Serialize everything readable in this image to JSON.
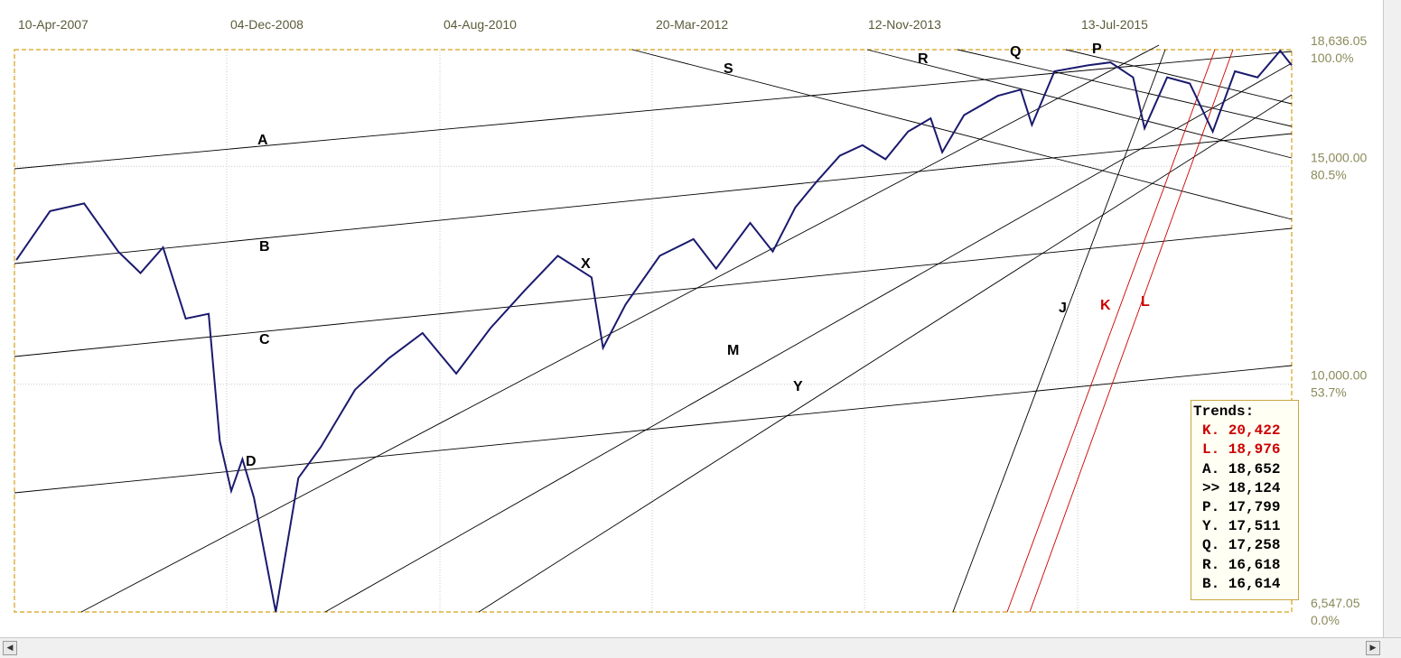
{
  "chart_data": {
    "type": "line",
    "title": "",
    "xlabel": "",
    "ylabel": "",
    "scale": "log",
    "ylim": [
      6547.05,
      18636.05
    ],
    "x_tick_labels": [
      "10-Apr-2007",
      "04-Dec-2008",
      "04-Aug-2010",
      "20-Mar-2012",
      "12-Nov-2013",
      "13-Jul-2015"
    ],
    "y_ticks": [
      {
        "value": "18,636.05",
        "percent": "100.0%"
      },
      {
        "value": "15,000.00",
        "percent": "80.5%"
      },
      {
        "value": "10,000.00",
        "percent": "53.7%"
      },
      {
        "value": "6,547.05",
        "percent": "0.0%"
      }
    ],
    "series": [
      {
        "color": "#1a1a6e",
        "x": [
          "2007-04",
          "2007-07",
          "2007-10",
          "2008-01",
          "2008-03",
          "2008-05",
          "2008-07",
          "2008-09",
          "2008-10",
          "2008-11",
          "2008-12",
          "2009-01",
          "2009-03",
          "2009-05",
          "2009-07",
          "2009-10",
          "2010-01",
          "2010-04",
          "2010-07",
          "2010-10",
          "2011-01",
          "2011-04",
          "2011-07",
          "2011-08",
          "2011-10",
          "2012-01",
          "2012-04",
          "2012-06",
          "2012-09",
          "2012-11",
          "2013-01",
          "2013-03",
          "2013-05",
          "2013-07",
          "2013-09",
          "2013-11",
          "2014-01",
          "2014-02",
          "2014-04",
          "2014-07",
          "2014-09",
          "2014-10",
          "2014-12",
          "2015-03",
          "2015-05",
          "2015-07",
          "2015-08",
          "2015-10",
          "2015-12",
          "2016-02",
          "2016-04",
          "2016-06",
          "2016-08",
          "2016-09"
        ],
        "values": [
          12600,
          13800,
          14000,
          12800,
          12300,
          12900,
          11300,
          11400,
          9000,
          8200,
          8700,
          8100,
          6547,
          8400,
          8900,
          9900,
          10500,
          11000,
          10200,
          11100,
          11900,
          12700,
          12200,
          10700,
          11600,
          12700,
          13100,
          12400,
          13500,
          12800,
          13900,
          14600,
          15300,
          15600,
          15200,
          16000,
          16400,
          15400,
          16500,
          17100,
          17300,
          16200,
          17900,
          18100,
          18200,
          17700,
          16100,
          17700,
          17500,
          16000,
          17900,
          17700,
          18600,
          18100
        ]
      }
    ],
    "trendlines": [
      {
        "label": "A",
        "color": "#000000"
      },
      {
        "label": "B",
        "color": "#000000"
      },
      {
        "label": "C",
        "color": "#000000"
      },
      {
        "label": "D",
        "color": "#000000"
      },
      {
        "label": "X",
        "color": "#000000"
      },
      {
        "label": "M",
        "color": "#000000"
      },
      {
        "label": "Y",
        "color": "#000000"
      },
      {
        "label": "S",
        "color": "#000000"
      },
      {
        "label": "R",
        "color": "#000000"
      },
      {
        "label": "Q",
        "color": "#000000"
      },
      {
        "label": "P",
        "color": "#000000"
      },
      {
        "label": "J",
        "color": "#000000"
      },
      {
        "label": "K",
        "color": "#cc0000"
      },
      {
        "label": "L",
        "color": "#cc0000"
      }
    ]
  },
  "trends_box": {
    "title": "Trends:",
    "rows": [
      {
        "text": "K. 20,422",
        "color": "#cc0000"
      },
      {
        "text": "L. 18,976",
        "color": "#cc0000"
      },
      {
        "text": "A. 18,652",
        "color": "#000000"
      },
      {
        "text": ">> 18,124",
        "color": "#000000"
      },
      {
        "text": "P. 17,799",
        "color": "#000000"
      },
      {
        "text": "Y. 17,511",
        "color": "#000000"
      },
      {
        "text": "Q. 17,258",
        "color": "#000000"
      },
      {
        "text": "R. 16,618",
        "color": "#000000"
      },
      {
        "text": "B. 16,614",
        "color": "#000000"
      }
    ]
  },
  "colors": {
    "frame": "#d4a017",
    "price_line": "#1a1a6e",
    "red_trend": "#cc0000",
    "grid": "#c8c8c8"
  },
  "scrollbar": {
    "left_icon": "arrow-left-icon",
    "right_icon": "arrow-right-icon"
  }
}
